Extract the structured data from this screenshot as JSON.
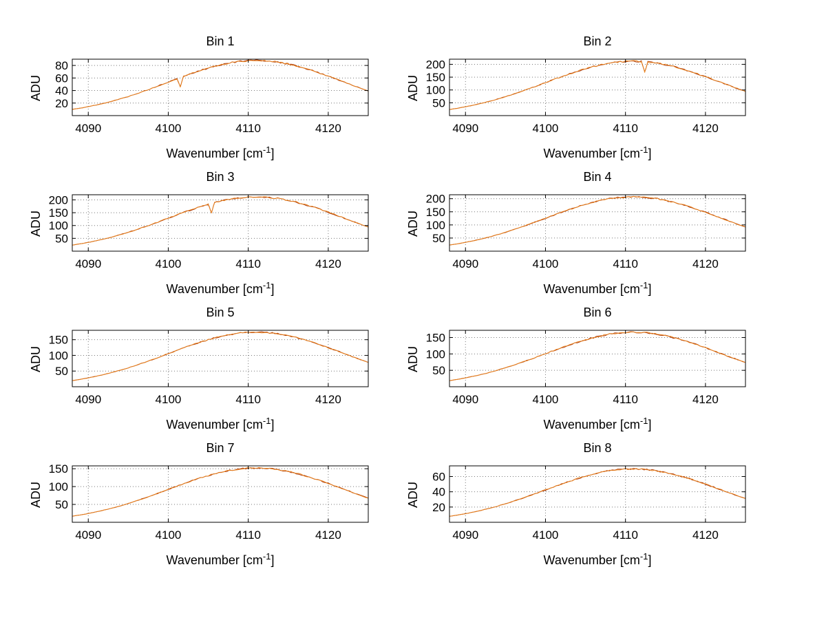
{
  "figure": {
    "background": "#ffffff",
    "series_colors": [
      "#a83200",
      "#e8821e"
    ],
    "grid_color": "#777777",
    "axis_color": "#000000",
    "text_color": "#000000"
  },
  "axes": {
    "ylabel": "ADU",
    "xlabel_main": "Wavenumber [cm",
    "xlabel_sup": "-1",
    "xlabel_close": "]",
    "x_values": [
      4088,
      4089,
      4090,
      4091,
      4092,
      4093,
      4094,
      4095,
      4096,
      4097,
      4098,
      4099,
      4100,
      4101,
      4102,
      4103,
      4104,
      4105,
      4106,
      4107,
      4108,
      4109,
      4110,
      4111,
      4112,
      4113,
      4114,
      4115,
      4116,
      4117,
      4118,
      4119,
      4120,
      4121,
      4122,
      4123,
      4124,
      4125
    ]
  },
  "chart_data": [
    {
      "type": "line",
      "title": "Bin 1",
      "xlabel": "Wavenumber [cm^-1]",
      "ylabel": "ADU",
      "xlim": [
        4088,
        4125
      ],
      "ylim": [
        0,
        90
      ],
      "xticks": [
        4090,
        4100,
        4110,
        4120
      ],
      "yticks": [
        20,
        40,
        60,
        80
      ],
      "values": [
        9.9,
        11.9,
        14.3,
        16.9,
        19.8,
        23.1,
        26.7,
        30.5,
        34.8,
        39.2,
        43.7,
        48.6,
        53.4,
        58.3,
        63.0,
        67.6,
        71.9,
        75.9,
        79.4,
        82.4,
        84.8,
        86.6,
        87.6,
        88.0,
        87.6,
        86.6,
        84.8,
        82.4,
        79.4,
        75.9,
        71.9,
        67.6,
        63.0,
        58.3,
        53.4,
        48.6,
        43.7,
        39.2
      ],
      "spikes": [
        {
          "x": 4101.5,
          "y": 46.0
        },
        {
          "x": 4114.6,
          "y": 83.0
        }
      ],
      "noise_amp": 1.2
    },
    {
      "type": "line",
      "title": "Bin 2",
      "xlabel": "Wavenumber [cm^-1]",
      "ylabel": "ADU",
      "xlim": [
        4088,
        4125
      ],
      "ylim": [
        0,
        220
      ],
      "xticks": [
        4090,
        4100,
        4110,
        4120
      ],
      "yticks": [
        50,
        100,
        150,
        200
      ],
      "values": [
        23.7,
        28.6,
        34.3,
        40.7,
        47.7,
        55.5,
        64.2,
        73.6,
        83.7,
        94.3,
        105.4,
        117.0,
        128.7,
        140.3,
        151.8,
        162.8,
        173.2,
        182.7,
        191.2,
        198.4,
        204.4,
        208.6,
        211.2,
        212.0,
        211.2,
        208.6,
        204.4,
        198.4,
        191.2,
        182.7,
        173.2,
        162.8,
        151.8,
        140.3,
        128.7,
        117.0,
        105.4,
        94.3
      ],
      "spikes": [
        {
          "x": 4112.4,
          "y": 170.0
        }
      ],
      "noise_amp": 3.0
    },
    {
      "type": "line",
      "title": "Bin 3",
      "xlabel": "Wavenumber [cm^-1]",
      "ylabel": "ADU",
      "xlim": [
        4088,
        4125
      ],
      "ylim": [
        0,
        220
      ],
      "xticks": [
        4090,
        4100,
        4110,
        4120
      ],
      "yticks": [
        50,
        100,
        150,
        200
      ],
      "values": [
        23.7,
        28.6,
        34.3,
        40.7,
        47.7,
        55.5,
        64.2,
        73.6,
        83.7,
        94.3,
        105.4,
        117.0,
        128.7,
        140.3,
        151.8,
        162.8,
        173.2,
        182.7,
        191.2,
        198.4,
        204.4,
        208.6,
        211.2,
        212.0,
        211.2,
        208.6,
        204.4,
        198.4,
        191.2,
        182.7,
        173.2,
        162.8,
        151.8,
        140.3,
        128.7,
        117.0,
        105.4,
        94.3
      ],
      "spikes": [
        {
          "x": 4105.4,
          "y": 150.0
        }
      ],
      "noise_amp": 3.0
    },
    {
      "type": "line",
      "title": "Bin 4",
      "xlabel": "Wavenumber [cm^-1]",
      "ylabel": "ADU",
      "xlim": [
        4088,
        4125
      ],
      "ylim": [
        0,
        215
      ],
      "xticks": [
        4090,
        4100,
        4110,
        4120
      ],
      "yticks": [
        50,
        100,
        150,
        200
      ],
      "values": [
        23.2,
        27.9,
        33.5,
        39.7,
        46.6,
        54.2,
        62.7,
        71.8,
        81.8,
        92.1,
        102.9,
        114.3,
        125.6,
        137.0,
        148.2,
        159.0,
        169.1,
        178.4,
        186.7,
        193.7,
        199.5,
        203.7,
        206.2,
        207.0,
        206.2,
        203.7,
        199.5,
        193.7,
        186.7,
        178.4,
        169.1,
        159.0,
        148.2,
        137.0,
        125.6,
        114.3,
        102.9,
        92.1
      ],
      "spikes": [],
      "noise_amp": 2.8
    },
    {
      "type": "line",
      "title": "Bin 5",
      "xlabel": "Wavenumber [cm^-1]",
      "ylabel": "ADU",
      "xlim": [
        4088,
        4125
      ],
      "ylim": [
        0,
        180
      ],
      "xticks": [
        4090,
        4100,
        4110,
        4120
      ],
      "yticks": [
        50,
        100,
        150
      ],
      "values": [
        19.5,
        23.5,
        28.2,
        33.4,
        39.2,
        45.6,
        52.7,
        60.4,
        68.7,
        77.4,
        86.5,
        96.0,
        105.6,
        115.2,
        124.6,
        133.6,
        142.2,
        150.0,
        156.9,
        162.9,
        167.7,
        171.2,
        173.3,
        174.0,
        173.3,
        171.2,
        167.7,
        162.9,
        156.9,
        150.0,
        142.2,
        133.6,
        124.6,
        115.2,
        105.6,
        96.0,
        86.5,
        77.4
      ],
      "spikes": [],
      "noise_amp": 2.2
    },
    {
      "type": "line",
      "title": "Bin 6",
      "xlabel": "Wavenumber [cm^-1]",
      "ylabel": "ADU",
      "xlim": [
        4088,
        4125
      ],
      "ylim": [
        0,
        172
      ],
      "xticks": [
        4090,
        4100,
        4110,
        4120
      ],
      "yticks": [
        50,
        100,
        150
      ],
      "values": [
        18.6,
        22.4,
        26.9,
        31.9,
        37.4,
        43.5,
        50.3,
        57.6,
        65.6,
        73.9,
        82.5,
        91.6,
        100.8,
        109.9,
        118.9,
        127.5,
        135.6,
        143.1,
        149.7,
        155.4,
        160.0,
        163.3,
        165.3,
        166.0,
        165.3,
        163.3,
        160.0,
        155.4,
        149.7,
        143.1,
        135.6,
        127.5,
        118.9,
        109.9,
        100.8,
        91.6,
        82.5,
        73.9
      ],
      "spikes": [],
      "noise_amp": 2.2
    },
    {
      "type": "line",
      "title": "Bin 7",
      "xlabel": "Wavenumber [cm^-1]",
      "ylabel": "ADU",
      "xlim": [
        4088,
        4125
      ],
      "ylim": [
        0,
        158
      ],
      "xticks": [
        4090,
        4100,
        4110,
        4120
      ],
      "yticks": [
        50,
        100,
        150
      ],
      "values": [
        17.0,
        20.5,
        24.6,
        29.2,
        34.2,
        39.8,
        46.1,
        52.7,
        60.0,
        67.6,
        75.5,
        83.9,
        92.3,
        100.6,
        108.8,
        116.7,
        124.2,
        131.0,
        137.1,
        142.3,
        146.5,
        149.6,
        151.4,
        152.0,
        151.4,
        149.6,
        146.5,
        142.3,
        137.1,
        131.0,
        124.2,
        116.7,
        108.8,
        100.6,
        92.3,
        83.9,
        75.5,
        67.6
      ],
      "spikes": [],
      "noise_amp": 2.0
    },
    {
      "type": "line",
      "title": "Bin 8",
      "xlabel": "Wavenumber [cm^-1]",
      "ylabel": "ADU",
      "xlim": [
        4088,
        4125
      ],
      "ylim": [
        0,
        74
      ],
      "xticks": [
        4090,
        4100,
        4110,
        4120
      ],
      "yticks": [
        20,
        40,
        60
      ],
      "values": [
        7.8,
        9.5,
        11.3,
        13.4,
        15.8,
        18.3,
        21.2,
        24.3,
        27.7,
        31.2,
        34.8,
        38.6,
        42.5,
        46.3,
        50.1,
        53.8,
        57.2,
        60.3,
        63.1,
        65.5,
        67.5,
        68.9,
        69.7,
        70.0,
        69.7,
        68.9,
        67.5,
        65.5,
        63.1,
        60.3,
        57.2,
        53.8,
        50.1,
        46.3,
        42.5,
        38.6,
        34.8,
        31.2
      ],
      "spikes": [],
      "noise_amp": 1.0
    }
  ]
}
